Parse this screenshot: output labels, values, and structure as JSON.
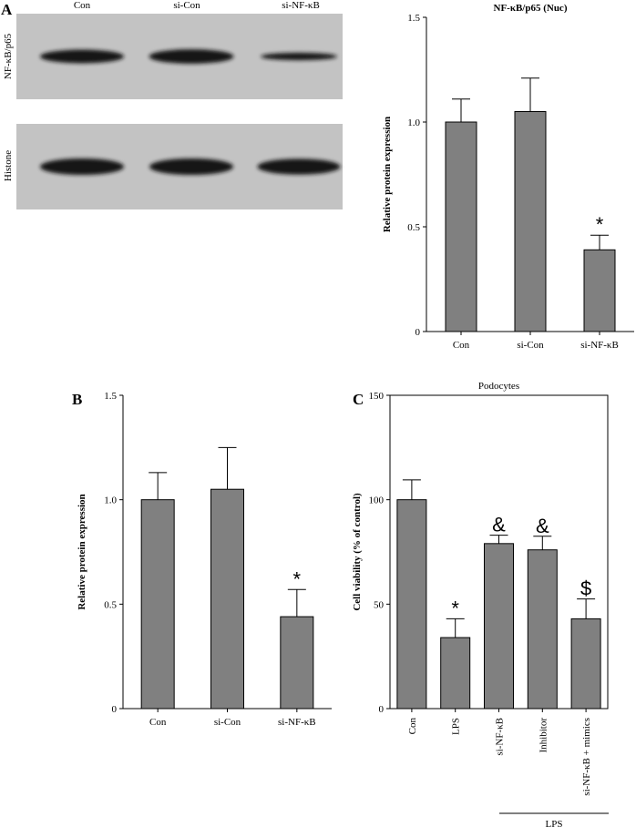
{
  "panel_labels": {
    "a": "A",
    "b": "B",
    "c": "C"
  },
  "blot": {
    "lanes": [
      "Con",
      "si-Con",
      "si-NF-κB"
    ],
    "rows": [
      {
        "label": "NF-κB/p65",
        "intensity": [
          1.0,
          1.05,
          0.55
        ]
      },
      {
        "label": "Histone",
        "intensity": [
          1.0,
          1.0,
          0.95
        ]
      }
    ]
  },
  "chart_data": [
    {
      "type": "bar",
      "panel": "A",
      "title": "NF-κB/p65 (Nuc)",
      "xlabel": "",
      "ylabel": "Relative protein expression",
      "categories": [
        "Con",
        "si-Con",
        "si-NF-κB"
      ],
      "values": [
        1.0,
        1.05,
        0.39
      ],
      "errors": [
        0.11,
        0.16,
        0.07
      ],
      "annotations": [
        "",
        "",
        "*"
      ],
      "ylim": [
        0,
        1.5
      ],
      "yticks": [
        0,
        0.5,
        1.0,
        1.5
      ],
      "ytick_labels": [
        "0",
        "0.5",
        "1.0",
        "1.5"
      ],
      "bar_color": "#808080"
    },
    {
      "type": "bar",
      "panel": "B",
      "title": "",
      "xlabel": "",
      "ylabel": "Relative protein expression",
      "categories": [
        "Con",
        "si-Con",
        "si-NF-κB"
      ],
      "values": [
        1.0,
        1.05,
        0.44
      ],
      "errors": [
        0.13,
        0.2,
        0.13
      ],
      "annotations": [
        "",
        "",
        "*"
      ],
      "ylim": [
        0,
        1.5
      ],
      "yticks": [
        0,
        0.5,
        1.0,
        1.5
      ],
      "ytick_labels": [
        "0",
        "0.5",
        "1.0",
        "1.5"
      ],
      "bar_color": "#808080"
    },
    {
      "type": "bar",
      "panel": "C",
      "title": "Podocytes",
      "xlabel": "",
      "ylabel": "Cell viability (% of control)",
      "categories": [
        "Con",
        "LPS",
        "si-NF-κB",
        "Inhibitor",
        "si-NF-κB + mimics"
      ],
      "values": [
        100,
        34,
        79,
        76,
        43
      ],
      "errors": [
        9.5,
        9,
        4,
        6.5,
        9.5
      ],
      "annotations": [
        "",
        "*",
        "&",
        "&",
        "$"
      ],
      "ylim": [
        0,
        150
      ],
      "yticks": [
        0,
        50,
        100,
        150
      ],
      "ytick_labels": [
        "0",
        "50",
        "100",
        "150"
      ],
      "group_label": "LPS",
      "bar_color": "#808080"
    }
  ]
}
